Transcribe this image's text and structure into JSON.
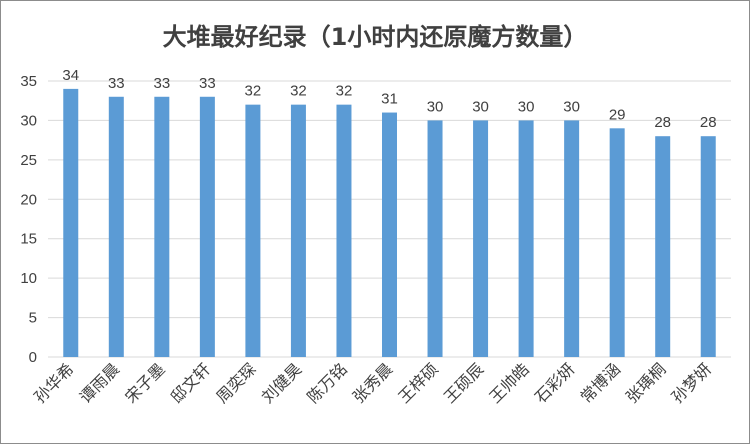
{
  "chart_data": {
    "type": "bar",
    "title": "大堆最好纪录（1小时内还原魔方数量）",
    "xlabel": "",
    "ylabel": "",
    "ylim": [
      0,
      35
    ],
    "yticks": [
      0,
      5,
      10,
      15,
      20,
      25,
      30,
      35
    ],
    "grid": true,
    "legend": "none",
    "bar_color": "#5b9bd5",
    "categories": [
      "孙华希",
      "谭雨晨",
      "宋子墨",
      "邸文轩",
      "周奕琛",
      "刘健昊",
      "陈万铭",
      "张秀晨",
      "王梓硕",
      "王硕辰",
      "王帅皓",
      "石彩妍",
      "常博涵",
      "张瑀桐",
      "孙梦妍"
    ],
    "values": [
      34,
      33,
      33,
      33,
      32,
      32,
      32,
      31,
      30,
      30,
      30,
      30,
      29,
      28,
      28
    ]
  }
}
